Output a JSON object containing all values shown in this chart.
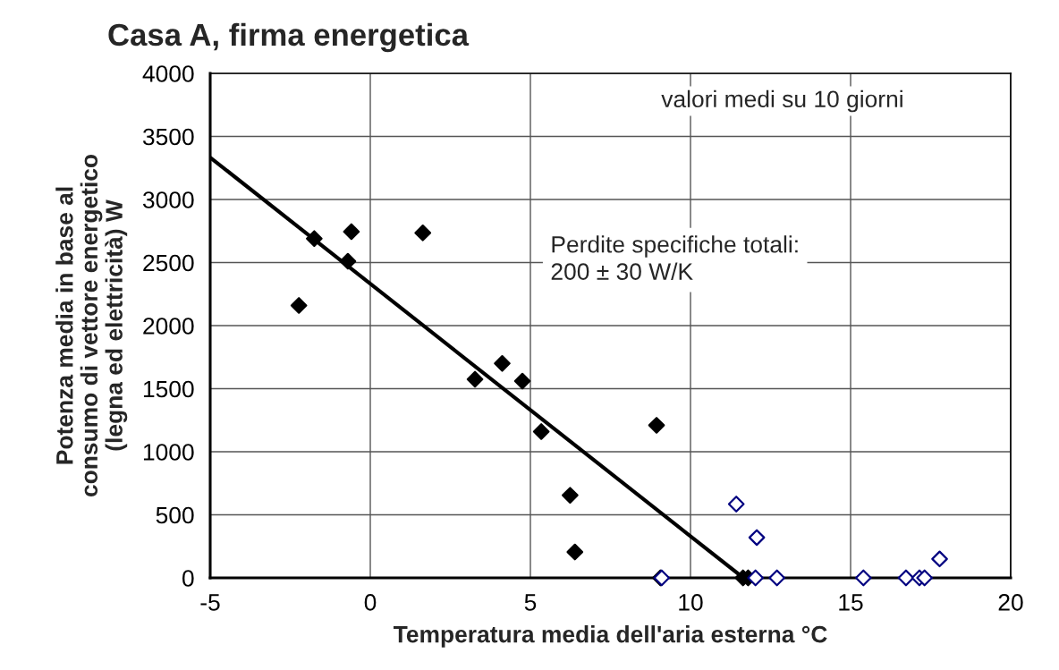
{
  "chart_data": {
    "type": "scatter",
    "title": "Casa A, firma energetica",
    "xlabel": "Temperatura media dell'aria esterna °C",
    "ylabel": "Potenza media in base al\nconsumo di vettore energetico\n(legna ed elettricità) W",
    "series": [
      {
        "color": "#000000",
        "x": [
          -2.23,
          -1.75,
          -0.7,
          -0.59,
          1.64,
          3.27,
          4.12,
          4.75,
          5.34,
          6.24,
          6.39,
          8.94,
          9.06,
          11.64,
          11.8
        ],
        "values": [
          2160,
          2690,
          2510,
          2745,
          2735,
          1575,
          1700,
          1560,
          1160,
          655,
          205,
          1210,
          0,
          0,
          0
        ]
      },
      {
        "color": "#000080",
        "x": [
          9.1,
          11.43,
          12.03,
          12.07,
          12.7,
          15.4,
          16.73,
          17.15,
          17.31,
          17.78
        ],
        "values": [
          0,
          585,
          0,
          320,
          0,
          0,
          0,
          0,
          0,
          150
        ]
      },
      {
        "type": "line",
        "marker": "none",
        "color": "#000000",
        "x": [
          -5,
          11.65
        ],
        "values": [
          3333,
          0
        ]
      }
    ],
    "annotations": [
      "valori medi su 10 giorni",
      "Perdite specifiche totali:\n200 ± 30 W/K"
    ],
    "xlim": [
      -5,
      20
    ],
    "xticks": [
      -5,
      0,
      5,
      10,
      15,
      20
    ],
    "ylim": [
      0,
      4000
    ],
    "yticks": [
      0,
      500,
      1000,
      1500,
      2000,
      2500,
      3000,
      3500,
      4000
    ],
    "grid": true,
    "marker": "diamond",
    "legend": false
  }
}
